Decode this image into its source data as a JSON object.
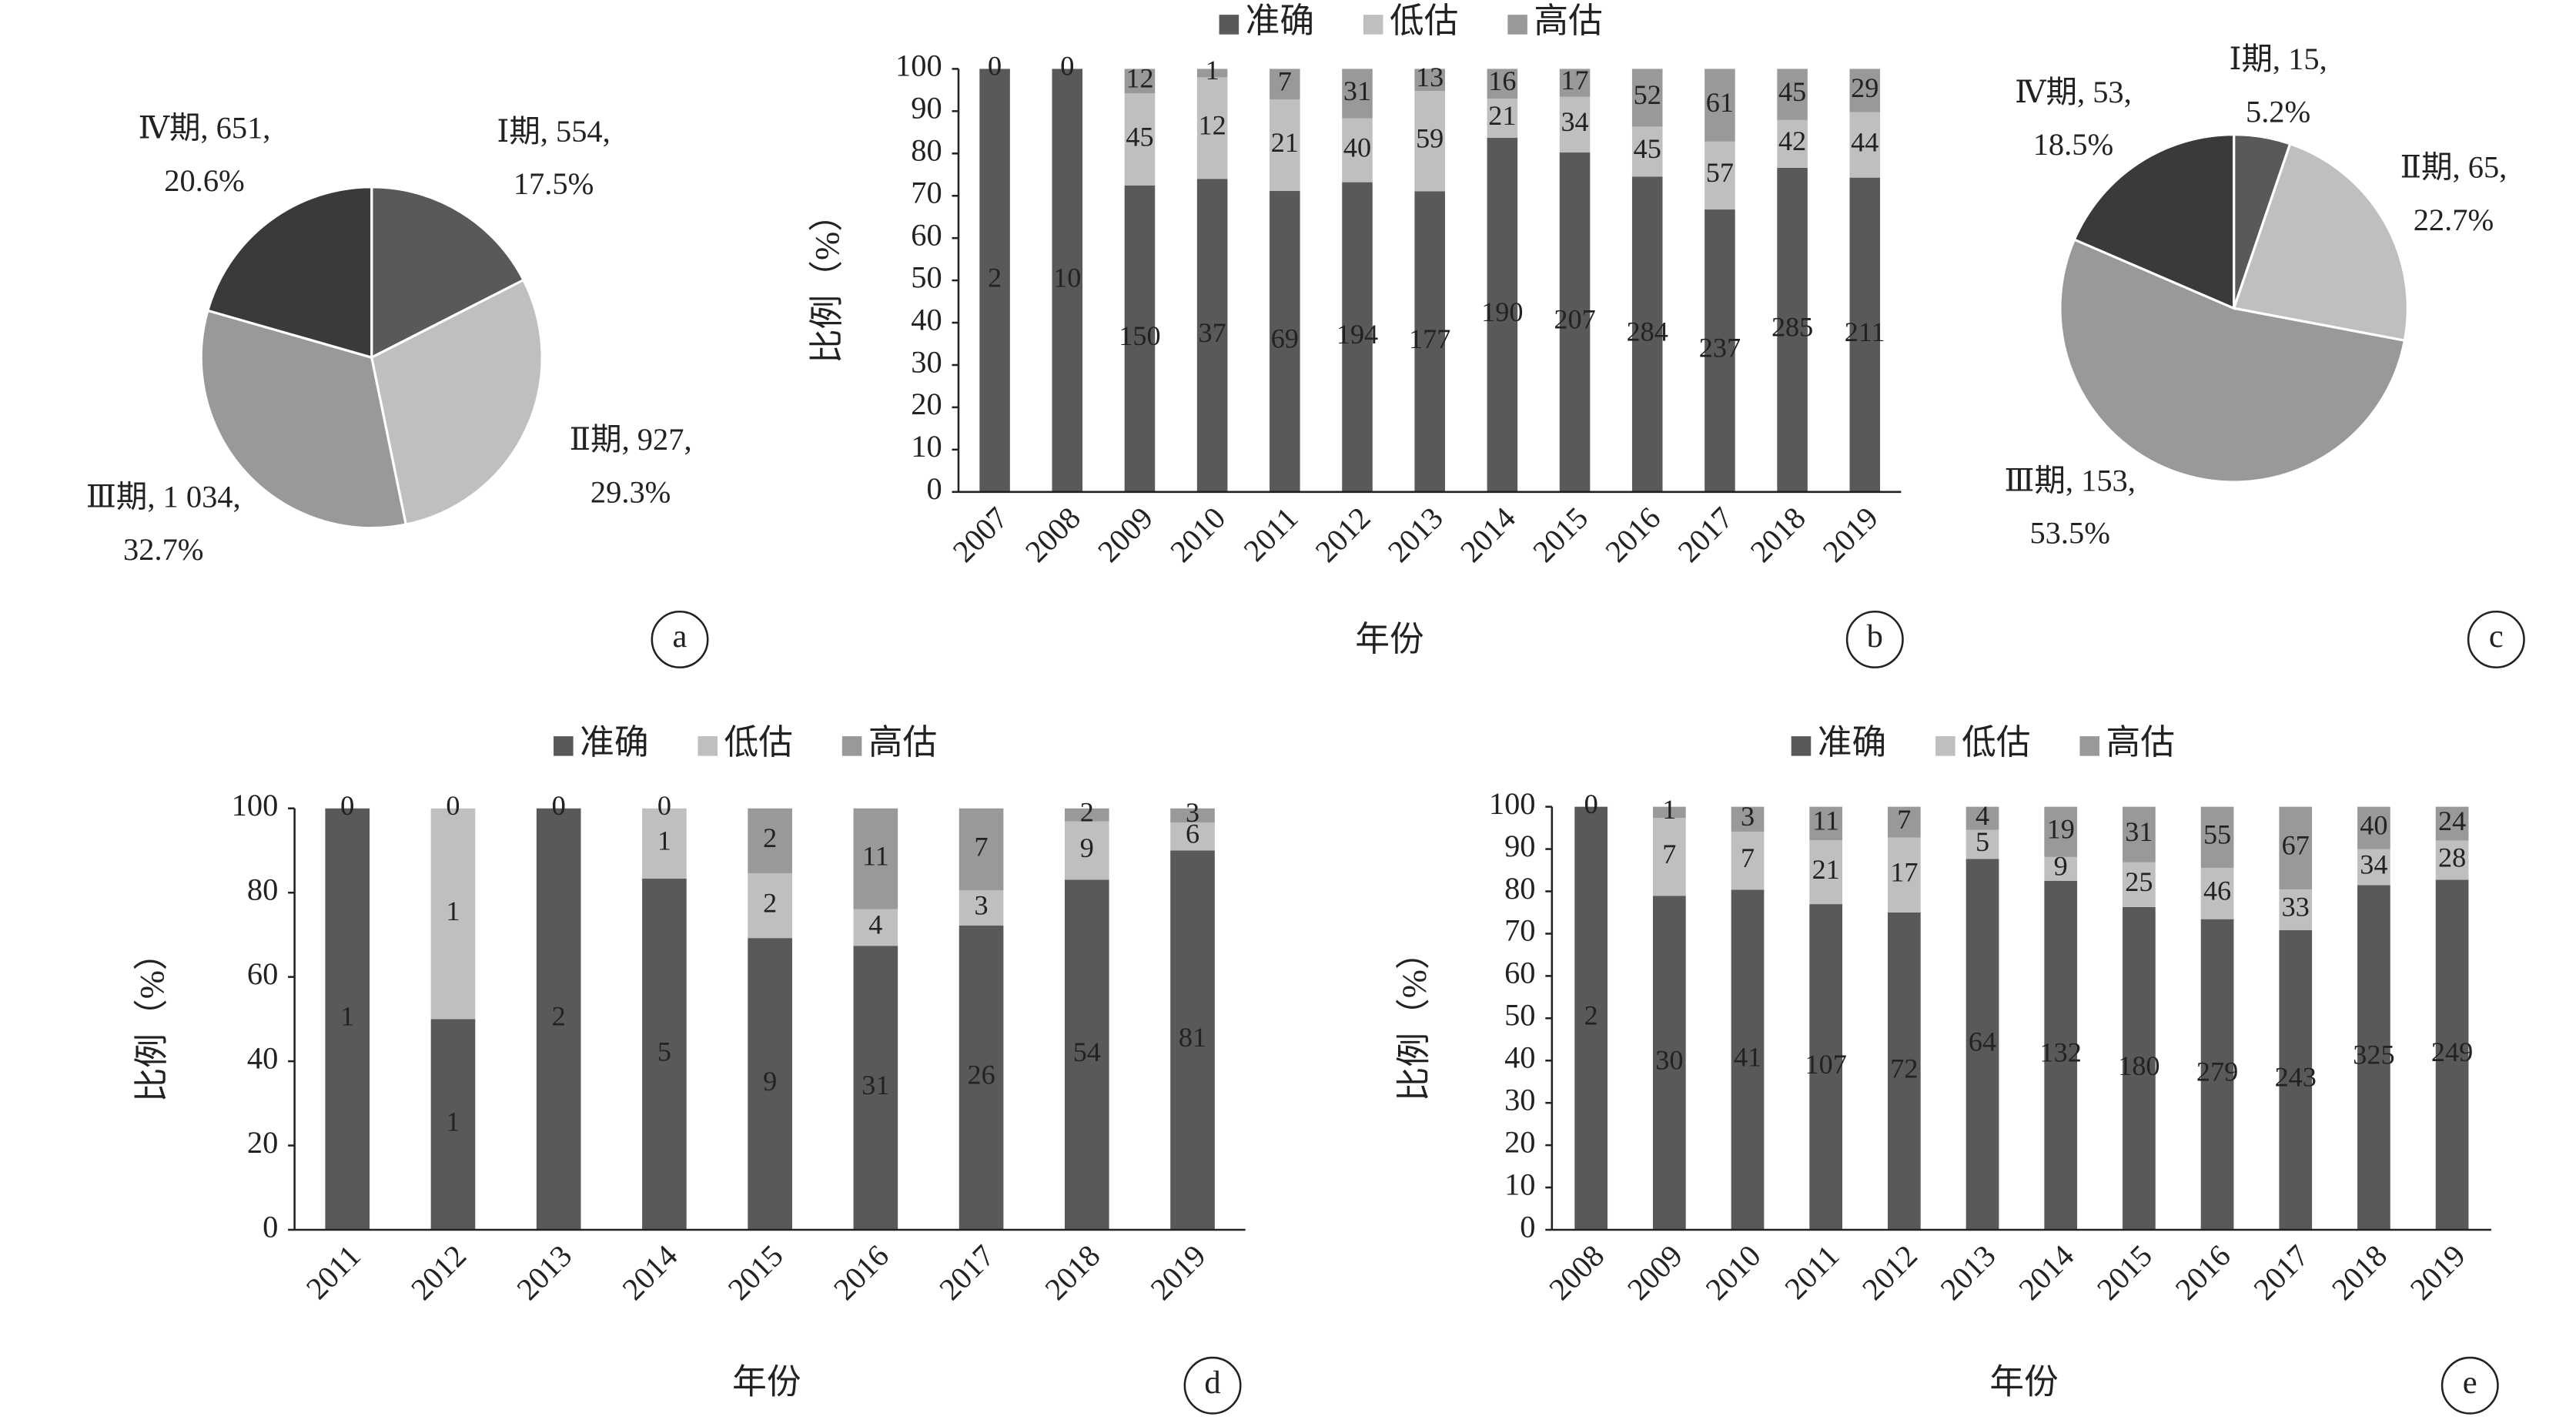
{
  "chart_data": [
    {
      "type": "pie",
      "panel": "a",
      "categories": [
        "Ⅰ期",
        "Ⅱ期",
        "Ⅲ期",
        "Ⅳ期"
      ],
      "values": [
        554,
        927,
        1034,
        651
      ],
      "labels": [
        [
          "Ⅰ期, 554,",
          "17.5%"
        ],
        [
          "Ⅱ期, 927,",
          "29.3%"
        ],
        [
          "Ⅲ期, 1 034,",
          "32.7%"
        ],
        [
          "Ⅳ期, 651,",
          "20.6%"
        ]
      ],
      "colors": [
        "#595959",
        "#bfbfbf",
        "#999999",
        "#3a3a3a"
      ]
    },
    {
      "type": "bar",
      "stack": "percent",
      "panel": "b",
      "xlabel": "年份",
      "ylabel": "比例（%）",
      "categories": [
        "2007",
        "2008",
        "2009",
        "2010",
        "2011",
        "2012",
        "2013",
        "2014",
        "2015",
        "2016",
        "2017",
        "2018",
        "2019"
      ],
      "series": [
        {
          "name": "准确",
          "color": "#595959",
          "values": [
            2,
            10,
            150,
            37,
            69,
            194,
            177,
            190,
            207,
            284,
            237,
            285,
            211
          ]
        },
        {
          "name": "低估",
          "color": "#bfbfbf",
          "values": [
            0,
            0,
            45,
            12,
            21,
            40,
            59,
            21,
            34,
            45,
            57,
            42,
            44
          ]
        },
        {
          "name": "高估",
          "color": "#999999",
          "values": [
            0,
            0,
            12,
            1,
            7,
            31,
            13,
            16,
            17,
            52,
            61,
            45,
            29
          ]
        }
      ],
      "ylim": [
        0,
        100
      ],
      "yticks": [
        0,
        10,
        20,
        30,
        40,
        50,
        60,
        70,
        80,
        90,
        100
      ]
    },
    {
      "type": "pie",
      "panel": "c",
      "categories": [
        "Ⅰ期",
        "Ⅱ期",
        "Ⅲ期",
        "Ⅳ期"
      ],
      "values": [
        15,
        65,
        153,
        53
      ],
      "labels": [
        [
          "Ⅰ期, 15,",
          "5.2%"
        ],
        [
          "Ⅱ期, 65,",
          "22.7%"
        ],
        [
          "Ⅲ期, 153,",
          "53.5%"
        ],
        [
          "Ⅳ期, 53,",
          "18.5%"
        ]
      ],
      "colors": [
        "#595959",
        "#bfbfbf",
        "#999999",
        "#3a3a3a"
      ]
    },
    {
      "type": "bar",
      "stack": "percent",
      "panel": "d",
      "xlabel": "年份",
      "ylabel": "比例（%）",
      "categories": [
        "2011",
        "2012",
        "2013",
        "2014",
        "2015",
        "2016",
        "2017",
        "2018",
        "2019"
      ],
      "series": [
        {
          "name": "准确",
          "color": "#595959",
          "values": [
            1,
            1,
            2,
            5,
            9,
            31,
            26,
            54,
            81
          ]
        },
        {
          "name": "低估",
          "color": "#bfbfbf",
          "values": [
            0,
            1,
            0,
            1,
            2,
            4,
            3,
            9,
            6
          ]
        },
        {
          "name": "高估",
          "color": "#999999",
          "values": [
            0,
            0,
            0,
            0,
            2,
            11,
            7,
            2,
            3
          ]
        }
      ],
      "ylim": [
        0,
        100
      ],
      "yticks": [
        0,
        20,
        40,
        60,
        80,
        100
      ]
    },
    {
      "type": "bar",
      "stack": "percent",
      "panel": "e",
      "xlabel": "年份",
      "ylabel": "比例（%）",
      "categories": [
        "2008",
        "2009",
        "2010",
        "2011",
        "2012",
        "2013",
        "2014",
        "2015",
        "2016",
        "2017",
        "2018",
        "2019"
      ],
      "series": [
        {
          "name": "准确",
          "color": "#595959",
          "values": [
            2,
            30,
            41,
            107,
            72,
            64,
            132,
            180,
            279,
            243,
            325,
            249
          ]
        },
        {
          "name": "低估",
          "color": "#bfbfbf",
          "values": [
            0,
            7,
            7,
            21,
            17,
            5,
            9,
            25,
            46,
            33,
            34,
            28
          ]
        },
        {
          "name": "高估",
          "color": "#999999",
          "values": [
            0,
            1,
            3,
            11,
            7,
            4,
            19,
            31,
            55,
            67,
            40,
            24
          ]
        }
      ],
      "ylim": [
        0,
        100
      ],
      "yticks": [
        0,
        10,
        20,
        30,
        40,
        50,
        60,
        70,
        80,
        90,
        100
      ]
    }
  ]
}
